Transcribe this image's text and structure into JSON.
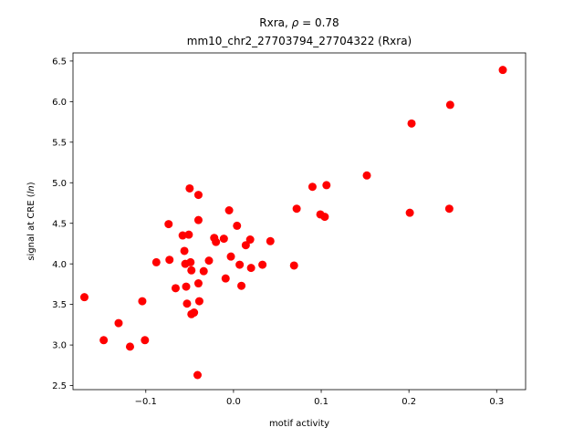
{
  "chart_data": {
    "type": "scatter",
    "title_line1_name": "Rxra, ",
    "title_line1_rho_symbol": "ρ",
    "title_line1_rho_value": " = 0.78",
    "title_line2": "mm10_chr2_27703794_27704322 (Rxra)",
    "xlabel": "motif activity",
    "ylabel_prefix": "signal at CRE (",
    "ylabel_italic": "ln",
    "ylabel_suffix": ")",
    "xlim": [
      -0.183,
      0.333
    ],
    "ylim": [
      2.45,
      6.6
    ],
    "xticks": [
      -0.1,
      0.0,
      0.1,
      0.2,
      0.3
    ],
    "xtick_labels": [
      "−0.1",
      "0.0",
      "0.1",
      "0.2",
      "0.3"
    ],
    "yticks": [
      2.5,
      3.0,
      3.5,
      4.0,
      4.5,
      5.0,
      5.5,
      6.0,
      6.5
    ],
    "ytick_labels": [
      "2.5",
      "3.0",
      "3.5",
      "4.0",
      "4.5",
      "5.0",
      "5.5",
      "6.0",
      "6.5"
    ],
    "grid": false,
    "marker_color": "#ff0000",
    "points": [
      {
        "x": -0.17,
        "y": 3.59
      },
      {
        "x": -0.148,
        "y": 3.06
      },
      {
        "x": -0.131,
        "y": 3.27
      },
      {
        "x": -0.118,
        "y": 2.98
      },
      {
        "x": -0.104,
        "y": 3.54
      },
      {
        "x": -0.101,
        "y": 3.06
      },
      {
        "x": -0.088,
        "y": 4.02
      },
      {
        "x": -0.074,
        "y": 4.49
      },
      {
        "x": -0.073,
        "y": 4.05
      },
      {
        "x": -0.066,
        "y": 3.7
      },
      {
        "x": -0.058,
        "y": 4.35
      },
      {
        "x": -0.056,
        "y": 4.16
      },
      {
        "x": -0.055,
        "y": 4.0
      },
      {
        "x": -0.054,
        "y": 3.72
      },
      {
        "x": -0.053,
        "y": 3.51
      },
      {
        "x": -0.051,
        "y": 4.36
      },
      {
        "x": -0.05,
        "y": 4.93
      },
      {
        "x": -0.049,
        "y": 4.02
      },
      {
        "x": -0.048,
        "y": 3.92
      },
      {
        "x": -0.048,
        "y": 3.38
      },
      {
        "x": -0.045,
        "y": 3.4
      },
      {
        "x": -0.04,
        "y": 4.85
      },
      {
        "x": -0.04,
        "y": 4.54
      },
      {
        "x": -0.04,
        "y": 3.76
      },
      {
        "x": -0.039,
        "y": 3.54
      },
      {
        "x": -0.041,
        "y": 2.63
      },
      {
        "x": -0.034,
        "y": 3.91
      },
      {
        "x": -0.028,
        "y": 4.04
      },
      {
        "x": -0.022,
        "y": 4.32
      },
      {
        "x": -0.02,
        "y": 4.27
      },
      {
        "x": -0.011,
        "y": 4.31
      },
      {
        "x": -0.009,
        "y": 3.82
      },
      {
        "x": -0.005,
        "y": 4.66
      },
      {
        "x": -0.003,
        "y": 4.09
      },
      {
        "x": 0.004,
        "y": 4.47
      },
      {
        "x": 0.007,
        "y": 3.99
      },
      {
        "x": 0.009,
        "y": 3.73
      },
      {
        "x": 0.014,
        "y": 4.23
      },
      {
        "x": 0.019,
        "y": 4.3
      },
      {
        "x": 0.02,
        "y": 3.95
      },
      {
        "x": 0.033,
        "y": 3.99
      },
      {
        "x": 0.042,
        "y": 4.28
      },
      {
        "x": 0.069,
        "y": 3.98
      },
      {
        "x": 0.072,
        "y": 4.68
      },
      {
        "x": 0.09,
        "y": 4.95
      },
      {
        "x": 0.099,
        "y": 4.61
      },
      {
        "x": 0.104,
        "y": 4.58
      },
      {
        "x": 0.106,
        "y": 4.97
      },
      {
        "x": 0.152,
        "y": 5.09
      },
      {
        "x": 0.201,
        "y": 4.63
      },
      {
        "x": 0.203,
        "y": 5.73
      },
      {
        "x": 0.246,
        "y": 4.68
      },
      {
        "x": 0.247,
        "y": 5.96
      },
      {
        "x": 0.307,
        "y": 6.39
      }
    ]
  }
}
